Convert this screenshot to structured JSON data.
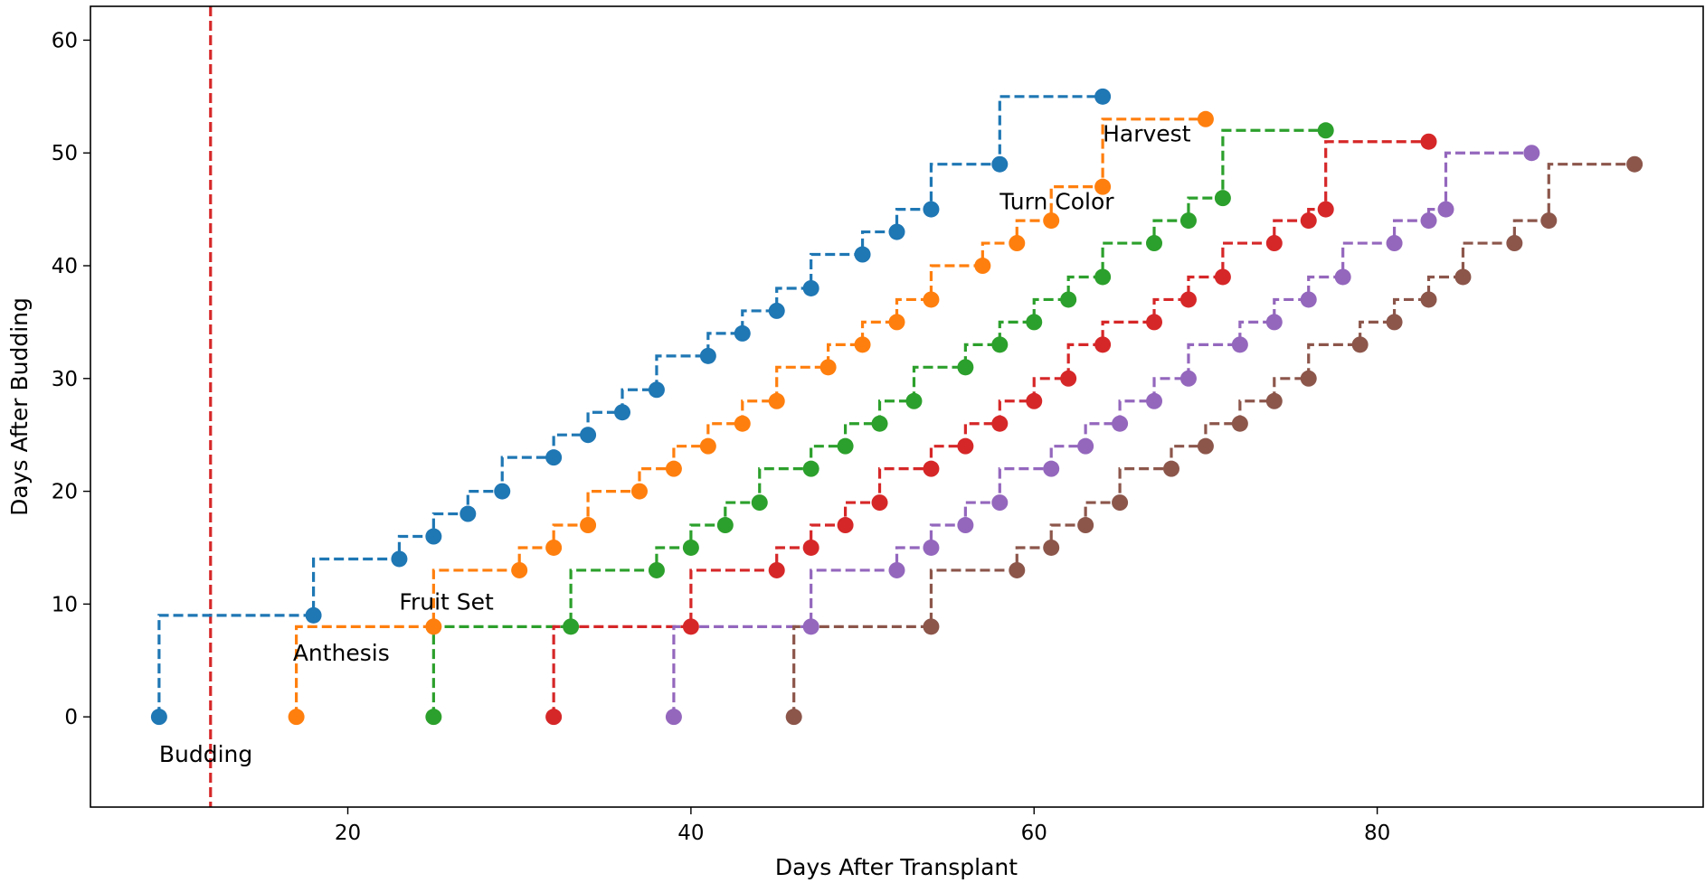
{
  "chart_data": {
    "type": "line",
    "xlabel": "Days After Transplant",
    "ylabel": "Days After Budding",
    "xlim": [
      5,
      99
    ],
    "ylim": [
      -8,
      63
    ],
    "xticks": [
      20,
      40,
      60,
      80
    ],
    "yticks": [
      0,
      10,
      20,
      30,
      40,
      50,
      60
    ],
    "grid": false,
    "legend": "none",
    "line_style": "dashed step",
    "reference_line": {
      "x": 12,
      "color": "#d62728",
      "style": "dashed"
    },
    "annotations": [
      {
        "text": "Budding",
        "x": 9,
        "y": -4
      },
      {
        "text": "Anthesis",
        "x": 16.8,
        "y": 5
      },
      {
        "text": "Fruit Set",
        "x": 23,
        "y": 9.5
      },
      {
        "text": "Turn Color",
        "x": 58,
        "y": 45
      },
      {
        "text": "Harvest",
        "x": 64,
        "y": 51
      }
    ],
    "series": [
      {
        "color": "#1f77b4",
        "points": [
          [
            9,
            0
          ],
          [
            18,
            9
          ],
          [
            23,
            14
          ],
          [
            25,
            16
          ],
          [
            27,
            18
          ],
          [
            29,
            20
          ],
          [
            32,
            23
          ],
          [
            34,
            25
          ],
          [
            36,
            27
          ],
          [
            38,
            29
          ],
          [
            41,
            32
          ],
          [
            43,
            34
          ],
          [
            45,
            36
          ],
          [
            47,
            38
          ],
          [
            50,
            41
          ],
          [
            52,
            43
          ],
          [
            54,
            45
          ],
          [
            58,
            49
          ],
          [
            64,
            55
          ]
        ]
      },
      {
        "color": "#ff7f0e",
        "points": [
          [
            17,
            0
          ],
          [
            25,
            8
          ],
          [
            30,
            13
          ],
          [
            32,
            15
          ],
          [
            34,
            17
          ],
          [
            37,
            20
          ],
          [
            39,
            22
          ],
          [
            41,
            24
          ],
          [
            43,
            26
          ],
          [
            45,
            28
          ],
          [
            48,
            31
          ],
          [
            50,
            33
          ],
          [
            52,
            35
          ],
          [
            54,
            37
          ],
          [
            57,
            40
          ],
          [
            59,
            42
          ],
          [
            61,
            44
          ],
          [
            64,
            47
          ],
          [
            70,
            53
          ]
        ]
      },
      {
        "color": "#2ca02c",
        "points": [
          [
            25,
            0
          ],
          [
            33,
            8
          ],
          [
            38,
            13
          ],
          [
            40,
            15
          ],
          [
            42,
            17
          ],
          [
            44,
            19
          ],
          [
            47,
            22
          ],
          [
            49,
            24
          ],
          [
            51,
            26
          ],
          [
            53,
            28
          ],
          [
            56,
            31
          ],
          [
            58,
            33
          ],
          [
            60,
            35
          ],
          [
            62,
            37
          ],
          [
            64,
            39
          ],
          [
            67,
            42
          ],
          [
            69,
            44
          ],
          [
            71,
            46
          ],
          [
            77,
            52
          ]
        ]
      },
      {
        "color": "#d62728",
        "points": [
          [
            32,
            0
          ],
          [
            40,
            8
          ],
          [
            45,
            13
          ],
          [
            47,
            15
          ],
          [
            49,
            17
          ],
          [
            51,
            19
          ],
          [
            54,
            22
          ],
          [
            56,
            24
          ],
          [
            58,
            26
          ],
          [
            60,
            28
          ],
          [
            62,
            30
          ],
          [
            64,
            33
          ],
          [
            67,
            35
          ],
          [
            69,
            37
          ],
          [
            71,
            39
          ],
          [
            74,
            42
          ],
          [
            76,
            44
          ],
          [
            77,
            45
          ],
          [
            83,
            51
          ]
        ]
      },
      {
        "color": "#9467bd",
        "points": [
          [
            39,
            0
          ],
          [
            47,
            8
          ],
          [
            52,
            13
          ],
          [
            54,
            15
          ],
          [
            56,
            17
          ],
          [
            58,
            19
          ],
          [
            61,
            22
          ],
          [
            63,
            24
          ],
          [
            65,
            26
          ],
          [
            67,
            28
          ],
          [
            69,
            30
          ],
          [
            72,
            33
          ],
          [
            74,
            35
          ],
          [
            76,
            37
          ],
          [
            78,
            39
          ],
          [
            81,
            42
          ],
          [
            83,
            44
          ],
          [
            84,
            45
          ],
          [
            89,
            50
          ]
        ]
      },
      {
        "color": "#8c564b",
        "points": [
          [
            46,
            0
          ],
          [
            54,
            8
          ],
          [
            59,
            13
          ],
          [
            61,
            15
          ],
          [
            63,
            17
          ],
          [
            65,
            19
          ],
          [
            68,
            22
          ],
          [
            70,
            24
          ],
          [
            72,
            26
          ],
          [
            74,
            28
          ],
          [
            76,
            30
          ],
          [
            79,
            33
          ],
          [
            81,
            35
          ],
          [
            83,
            37
          ],
          [
            85,
            39
          ],
          [
            88,
            42
          ],
          [
            90,
            44
          ],
          [
            95,
            49
          ]
        ]
      }
    ]
  }
}
